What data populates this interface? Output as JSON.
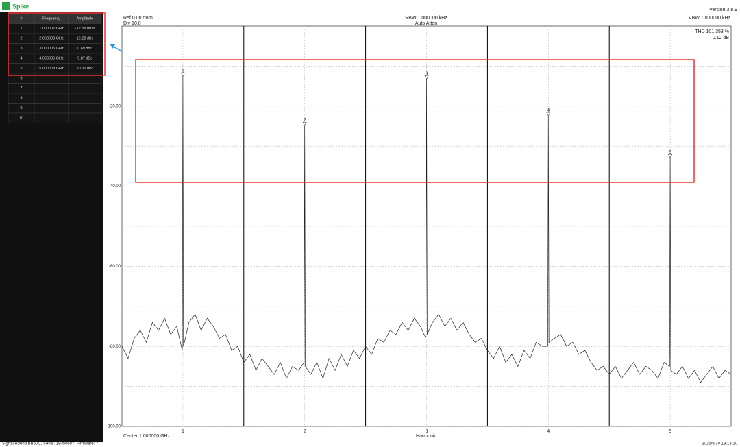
{
  "app": {
    "logo": "Spike",
    "version": "Version 3.8.9",
    "status": "Signal Hound BB60C, Serial: 18050687, Firmware: 7",
    "timestamp": "2025/9/30 19:13:10"
  },
  "marker_table": {
    "headers": [
      "#",
      "Frequency",
      "Amplitude"
    ],
    "rows": [
      [
        "1",
        "1.000002 GHz",
        "-12.58 dBm"
      ],
      [
        "2",
        "2.000003 GHz",
        "12.28 dBc"
      ],
      [
        "3",
        "3.000005 GHz",
        "0.69 dBc"
      ],
      [
        "4",
        "4.000006 GHz",
        "9.87 dBc"
      ],
      [
        "5",
        "5.000008 GHz",
        "20.32 dBc"
      ],
      [
        "6",
        "",
        ""
      ],
      [
        "7",
        "",
        ""
      ],
      [
        "8",
        "",
        ""
      ],
      [
        "9",
        "",
        ""
      ],
      [
        "10",
        "",
        ""
      ]
    ]
  },
  "chart_data": {
    "type": "line",
    "ref": "Ref 0.00 dBm",
    "div": "Div 10.0",
    "rbw": "RBW 1.000000 kHz",
    "atten": "Auto Atten",
    "vbw": "VBW 1.000000 kHz",
    "thd": "THD 101.353 %",
    "thd_db": "0.12 dB",
    "center": "Center 1.000000 GHz",
    "x_label": "Harmonic",
    "xlim": [
      0.5,
      5.5
    ],
    "xticks": [
      1,
      2,
      3,
      4,
      5
    ],
    "ylim": [
      -100,
      0
    ],
    "yticks": [
      {
        "value": -20,
        "label": "-20.00"
      },
      {
        "value": -40,
        "label": "-40.00"
      },
      {
        "value": -60,
        "label": "-60.00"
      },
      {
        "value": -80,
        "label": "-80.00"
      },
      {
        "value": -100,
        "label": "-100.00"
      }
    ],
    "ygrid": [
      -10,
      -30,
      -50,
      -70,
      -90
    ],
    "series": [
      {
        "color": "#222222",
        "x": [
          0.5,
          0.55,
          0.6,
          0.65,
          0.7,
          0.75,
          0.8,
          0.85,
          0.9,
          0.95,
          0.995,
          1,
          1.005,
          1.05,
          1.1,
          1.15,
          1.2,
          1.25,
          1.3,
          1.35,
          1.4,
          1.45,
          1.5,
          1.55,
          1.6,
          1.65,
          1.7,
          1.75,
          1.8,
          1.85,
          1.9,
          1.95,
          1.995,
          2,
          2.005,
          2.05,
          2.1,
          2.15,
          2.2,
          2.25,
          2.3,
          2.35,
          2.4,
          2.45,
          2.5,
          2.55,
          2.6,
          2.65,
          2.7,
          2.75,
          2.8,
          2.85,
          2.9,
          2.95,
          2.995,
          3,
          3.005,
          3.05,
          3.1,
          3.15,
          3.2,
          3.25,
          3.3,
          3.35,
          3.4,
          3.45,
          3.5,
          3.55,
          3.6,
          3.65,
          3.7,
          3.75,
          3.8,
          3.85,
          3.9,
          3.95,
          3.995,
          4,
          4.005,
          4.05,
          4.1,
          4.15,
          4.2,
          4.25,
          4.3,
          4.35,
          4.4,
          4.45,
          4.5,
          4.55,
          4.6,
          4.65,
          4.7,
          4.75,
          4.8,
          4.85,
          4.9,
          4.95,
          4.995,
          5,
          5.005,
          5.05,
          5.1,
          5.15,
          5.2,
          5.25,
          5.3,
          5.35,
          5.4,
          5.45,
          5.5
        ],
        "values": [
          -80,
          -83,
          -78,
          -76,
          -79,
          -74,
          -76,
          -73,
          -77,
          -75,
          -81,
          -12.58,
          -80,
          -74,
          -72,
          -76,
          -73,
          -75,
          -78,
          -77,
          -81,
          -80,
          -84,
          -82,
          -86,
          -83,
          -85,
          -87,
          -84,
          -88,
          -85,
          -86,
          -84,
          -24.86,
          -85,
          -87,
          -84,
          -88,
          -83,
          -86,
          -82,
          -85,
          -81,
          -83,
          -80,
          -82,
          -78,
          -79,
          -76,
          -77,
          -74,
          -76,
          -73,
          -75,
          -78,
          -13.27,
          -77,
          -74,
          -72,
          -75,
          -73,
          -76,
          -74,
          -77,
          -79,
          -78,
          -81,
          -83,
          -80,
          -84,
          -82,
          -85,
          -81,
          -83,
          -79,
          -80,
          -80,
          -22.45,
          -79,
          -78,
          -77,
          -80,
          -79,
          -82,
          -81,
          -84,
          -86,
          -85,
          -87,
          -85,
          -88,
          -86,
          -84,
          -87,
          -85,
          -86,
          -88,
          -84,
          -85,
          -32.9,
          -86,
          -87,
          -85,
          -88,
          -86,
          -89,
          -87,
          -85,
          -88,
          -86,
          -87
        ]
      }
    ],
    "markers": [
      {
        "label": "1",
        "x": 1,
        "y": -12.58
      },
      {
        "label": "2",
        "x": 2,
        "y": -24.86
      },
      {
        "label": "3",
        "x": 3,
        "y": -13.27
      },
      {
        "label": "4",
        "x": 4,
        "y": -22.45
      },
      {
        "label": "5",
        "x": 5,
        "y": -32.9
      }
    ]
  }
}
